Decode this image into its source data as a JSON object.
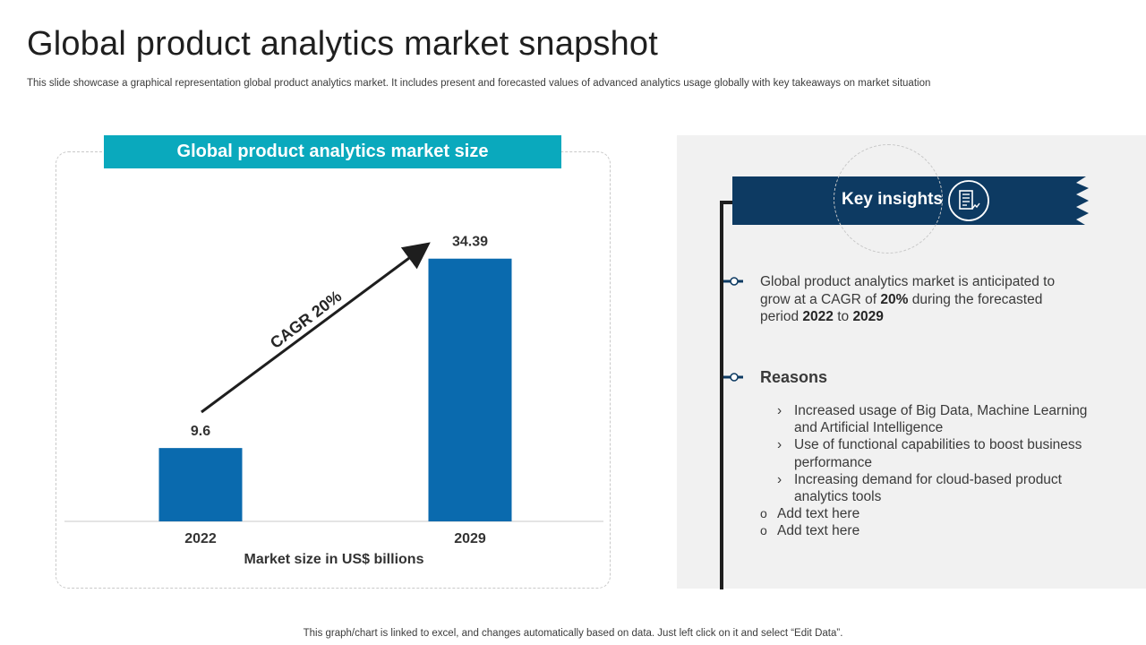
{
  "slide": {
    "title": "Global product analytics market snapshot",
    "subtitle": "This slide showcase a graphical representation global product analytics market. It includes present and forecasted values of advanced analytics usage globally with key takeaways on market situation",
    "footnote": "This graph/chart is linked to excel,  and changes automatically based on data. Just left click on it and select “Edit Data”."
  },
  "chart_panel": {
    "banner": "Global product analytics market size",
    "annotation": "CAGR 20%"
  },
  "chart_data": {
    "type": "bar",
    "title": "Global product analytics market size",
    "categories": [
      "2022",
      "2029"
    ],
    "values": [
      9.6,
      34.39
    ],
    "data_labels": [
      "9.6",
      "34.39"
    ],
    "xlabel": "Market size in US$ billions",
    "ylabel": "",
    "ylim": [
      0,
      36
    ],
    "grid": false,
    "bar_color": "#0a6aae"
  },
  "insights": {
    "title": "Key insights",
    "icon": "report-icon",
    "summary": {
      "p1": "Global product analytics market is anticipated to grow at a CAGR of ",
      "b1": "20%",
      "p2": " during the forecasted period ",
      "b2": "2022",
      "p3": " to ",
      "b3": "2029"
    },
    "reasons_heading": "Reasons",
    "reasons": [
      "Increased usage of Big Data, Machine Learning and Artificial Intelligence",
      "Use of functional capabilities to boost business performance",
      "Increasing demand for cloud-based product analytics tools"
    ],
    "extra_items": [
      "Add text here",
      "Add text here"
    ]
  },
  "colors": {
    "banner": "#0aa9bd",
    "ribbon": "#0d3a62",
    "bar": "#0a6aae",
    "panel": "#f1f1f1"
  }
}
